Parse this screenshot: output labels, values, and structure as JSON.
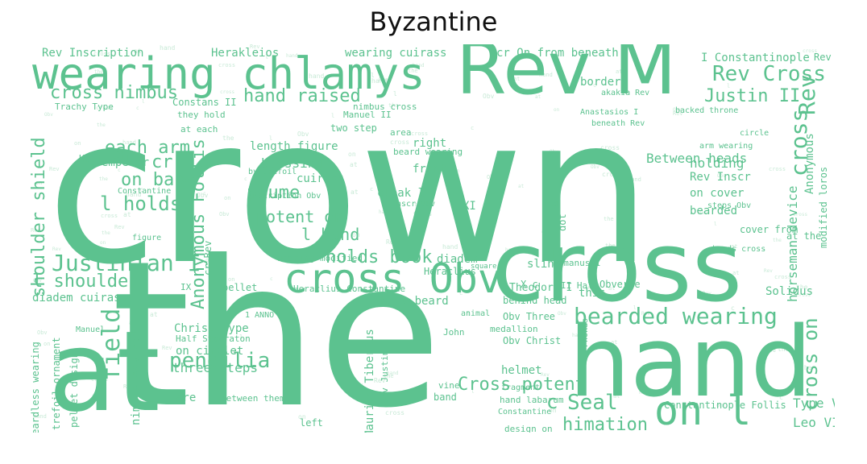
{
  "title": "Byzantine",
  "word_color": "#5cc28f",
  "faint_color": "#c9ead7",
  "words": [
    {
      "text": "crown",
      "big": true
    },
    {
      "text": "the",
      "big": true
    },
    {
      "text": "hand",
      "big": true
    },
    {
      "text": "cross",
      "big": true
    },
    {
      "text": "Rev M",
      "big": true
    },
    {
      "text": "at",
      "big": true
    },
    {
      "text": "wearing chlamys"
    },
    {
      "text": "cross Obv"
    },
    {
      "text": "on l"
    },
    {
      "text": "bearded wearing"
    },
    {
      "text": "field"
    },
    {
      "text": "pendilia"
    },
    {
      "text": "Justinian I"
    },
    {
      "text": "cross nimbus"
    },
    {
      "text": "hand raised"
    },
    {
      "text": "Rev Cross"
    },
    {
      "text": "Justin II"
    },
    {
      "text": "Rev"
    },
    {
      "text": "cross"
    },
    {
      "text": "cross on"
    },
    {
      "text": "each arm"
    },
    {
      "text": "cr"
    },
    {
      "text": "on base"
    },
    {
      "text": "l holds"
    },
    {
      "text": "shoulder shield"
    },
    {
      "text": "Anonymous Follis"
    },
    {
      "text": "plume"
    },
    {
      "text": "potent on"
    },
    {
      "text": "l hand"
    },
    {
      "text": "holds book"
    },
    {
      "text": "l shoulder"
    },
    {
      "text": "Cross potent"
    },
    {
      "text": "Seal"
    },
    {
      "text": "himation"
    },
    {
      "text": "Type VIIb"
    },
    {
      "text": "Leo VI"
    },
    {
      "text": "Christ Type"
    },
    {
      "text": "on circlet"
    },
    {
      "text": "three steps"
    },
    {
      "text": "horseman device"
    },
    {
      "text": "Between heads"
    },
    {
      "text": "holding"
    },
    {
      "text": "Rev Inscr"
    },
    {
      "text": "on cover"
    },
    {
      "text": "bearded"
    },
    {
      "text": "cover from"
    },
    {
      "text": "length figure"
    },
    {
      "text": "blessing"
    },
    {
      "text": "cuirass"
    },
    {
      "text": "cloak l"
    },
    {
      "text": "front"
    },
    {
      "text": "right"
    },
    {
      "text": "emperor"
    },
    {
      "text": "Half Follis"
    },
    {
      "text": "short beard"
    },
    {
      "text": "diadem cuirass"
    },
    {
      "text": "Half Stavraton"
    },
    {
      "text": "are"
    },
    {
      "text": "c"
    },
    {
      "text": "sling"
    },
    {
      "text": "this"
    },
    {
      "text": "helmet"
    },
    {
      "text": "Obv Christ"
    },
    {
      "text": "Obv Three"
    },
    {
      "text": "behind head"
    },
    {
      "text": "Obverse"
    },
    {
      "text": "Heraclius"
    },
    {
      "text": "diadem"
    },
    {
      "text": "band"
    },
    {
      "text": "Maurice Tiberius"
    },
    {
      "text": "XI c"
    },
    {
      "text": "Theodore I"
    },
    {
      "text": "II Half"
    },
    {
      "text": "Romanus I"
    },
    {
      "text": "I Constantinople"
    },
    {
      "text": "wearing cuirass"
    },
    {
      "text": "Herakleios"
    },
    {
      "text": "Rev Inscription"
    },
    {
      "text": "cr On from beneath"
    },
    {
      "text": "border"
    },
    {
      "text": "nimbus having"
    },
    {
      "text": "beardless wearing"
    },
    {
      "text": "trefoil ornament"
    },
    {
      "text": "pellet design"
    },
    {
      "text": "Constantinople Follis"
    },
    {
      "text": "Solidus"
    },
    {
      "text": "at the"
    },
    {
      "text": "modified loros"
    },
    {
      "text": "Constans II"
    },
    {
      "text": "Manuel II"
    },
    {
      "text": "two step"
    },
    {
      "text": "area"
    },
    {
      "text": "beard wearing"
    },
    {
      "text": "nimbus cross"
    },
    {
      "text": "Trachy Type"
    },
    {
      "text": "they hold"
    },
    {
      "text": "at each"
    },
    {
      "text": "by trefoil"
    },
    {
      "text": "Inscription Obv"
    },
    {
      "text": "Inscr Obv"
    },
    {
      "text": "vine"
    },
    {
      "text": "fragment"
    },
    {
      "text": "John"
    },
    {
      "text": "Obv Justin"
    },
    {
      "text": "hand labarum"
    },
    {
      "text": "design on"
    },
    {
      "text": "medallion"
    },
    {
      "text": "left"
    },
    {
      "text": "between them"
    },
    {
      "text": "John V"
    },
    {
      "text": "1 ANNO"
    },
    {
      "text": "Manuel"
    },
    {
      "text": "IX"
    },
    {
      "text": "pellet"
    },
    {
      "text": "Heraclius Constantine"
    },
    {
      "text": "wearing modified"
    },
    {
      "text": "Anastasios I"
    },
    {
      "text": "akakia Rev"
    },
    {
      "text": "beneath Rev"
    },
    {
      "text": "backed throne"
    },
    {
      "text": "arm wearing"
    },
    {
      "text": "steps Obv"
    },
    {
      "text": "heads cross"
    },
    {
      "text": "red"
    },
    {
      "text": "dot"
    },
    {
      "text": "circle"
    },
    {
      "text": "square"
    },
    {
      "text": "animal"
    },
    {
      "text": "Constantine"
    },
    {
      "text": "Phokas"
    },
    {
      "text": "Rev"
    },
    {
      "text": "cr Rev"
    },
    {
      "text": "Anonymous"
    },
    {
      "text": "X c"
    },
    {
      "text": "Constantine VII"
    },
    {
      "text": "figure"
    }
  ]
}
